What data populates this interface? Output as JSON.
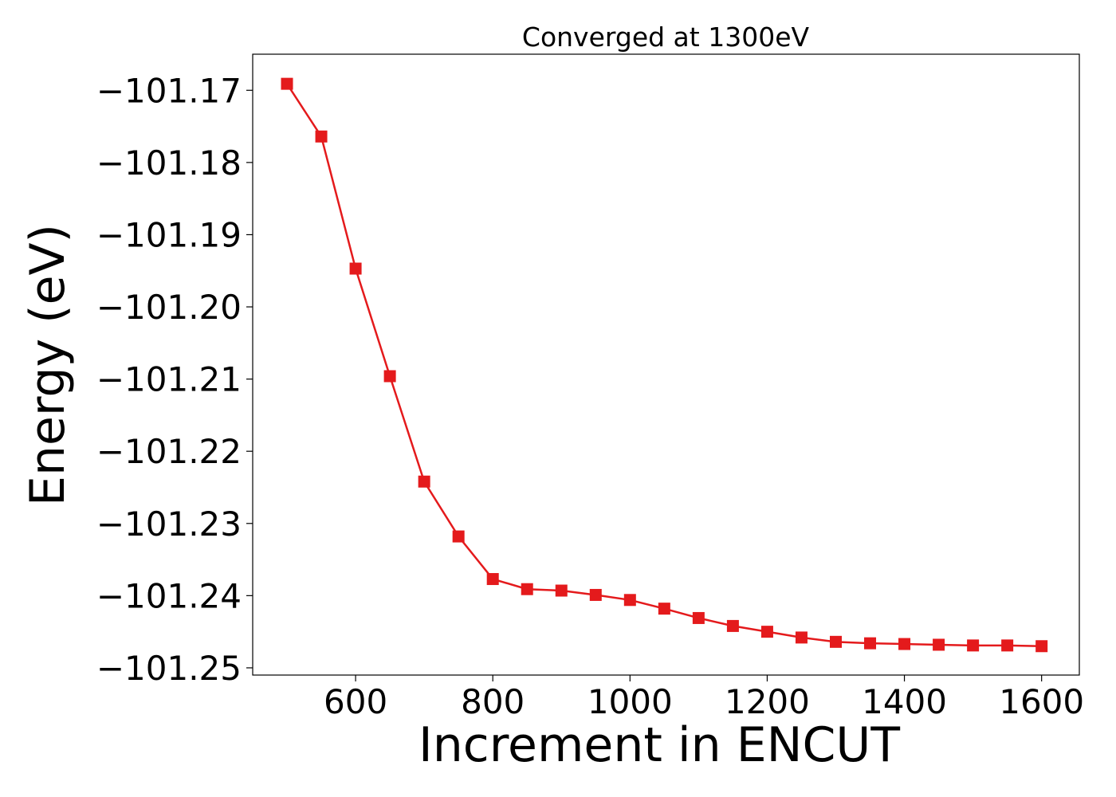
{
  "chart_data": {
    "type": "line",
    "title": "Converged at 1300eV",
    "xlabel": "Increment in ENCUT",
    "ylabel": "Energy (eV)",
    "xlim": [
      450,
      1655
    ],
    "ylim": [
      -101.251,
      -101.165
    ],
    "x_ticks": [
      600,
      800,
      1000,
      1200,
      1400,
      1600
    ],
    "x_tick_labels": [
      "600",
      "800",
      "1000",
      "1200",
      "1400",
      "1600"
    ],
    "y_ticks": [
      -101.17,
      -101.18,
      -101.19,
      -101.2,
      -101.21,
      -101.22,
      -101.23,
      -101.24,
      -101.25
    ],
    "y_tick_labels": [
      "−101.17",
      "−101.18",
      "−101.19",
      "−101.20",
      "−101.21",
      "−101.22",
      "−101.23",
      "−101.24",
      "−101.25"
    ],
    "grid": false,
    "series": [
      {
        "color": "#e41a1c",
        "marker": "square",
        "x": [
          500,
          550,
          600,
          650,
          700,
          750,
          800,
          850,
          900,
          950,
          1000,
          1050,
          1100,
          1150,
          1200,
          1250,
          1300,
          1350,
          1400,
          1450,
          1500,
          1550,
          1600
        ],
        "y": [
          -101.1691,
          -101.1764,
          -101.1947,
          -101.2096,
          -101.2242,
          -101.2318,
          -101.2377,
          -101.2391,
          -101.2393,
          -101.2399,
          -101.2406,
          -101.2418,
          -101.2431,
          -101.2442,
          -101.245,
          -101.2458,
          -101.2464,
          -101.2466,
          -101.2467,
          -101.2468,
          -101.2469,
          -101.2469,
          -101.247
        ]
      }
    ]
  }
}
